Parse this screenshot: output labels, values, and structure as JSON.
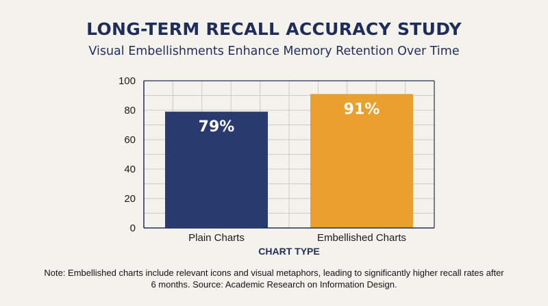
{
  "title": "LONG-TERM RECALL ACCURACY STUDY",
  "subtitle": "Visual Embellishments Enhance Memory Retention Over Time",
  "note": "Note: Embellished charts include relevant icons and visual metaphors, leading to significantly higher recall rates after 6 months. Source: Academic Research on Information Design.",
  "colors": {
    "plain": "#283a6e",
    "embellished": "#e9a02e",
    "axis": "#1f2d5a",
    "grid": "#c9c9c9"
  },
  "chart_data": {
    "type": "bar",
    "categories": [
      "Plain Charts",
      "Embellished Charts"
    ],
    "values": [
      79,
      91
    ],
    "value_labels": [
      "79%",
      "91%"
    ],
    "xlabel": "CHART TYPE",
    "ylabel": "",
    "ylim": [
      0,
      100
    ],
    "yticks": [
      0,
      20,
      40,
      60,
      80,
      100
    ],
    "grid": true,
    "legend": "none"
  }
}
